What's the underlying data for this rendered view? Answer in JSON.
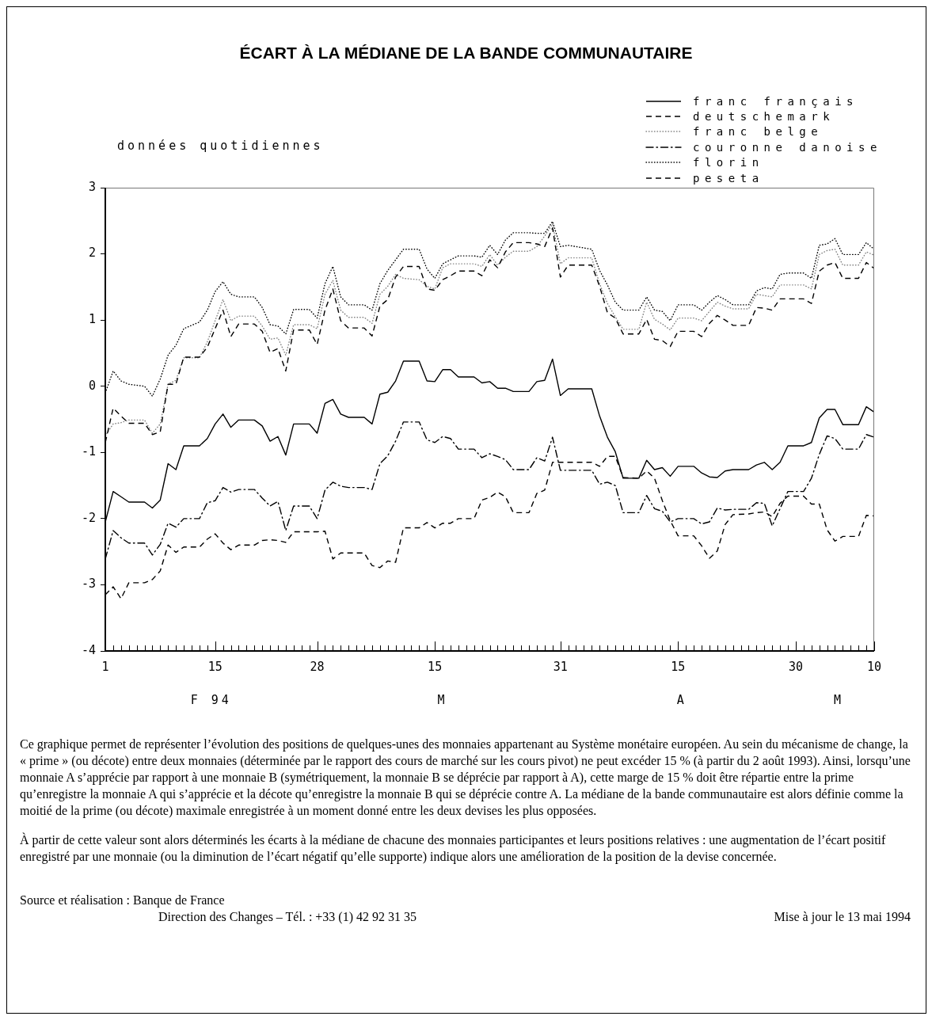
{
  "chart_data": {
    "type": "line",
    "title": "ÉCART À LA MÉDIANE DE LA BANDE COMMUNAUTAIRE",
    "ylabel": "données quotidiennes",
    "x": [
      "1994-02-01",
      "1994-02-02",
      "1994-02-03",
      "1994-02-04",
      "1994-02-06",
      "1994-02-07",
      "1994-02-08",
      "1994-02-09",
      "1994-02-10",
      "1994-02-11",
      "1994-02-13",
      "1994-02-14",
      "1994-02-15",
      "1994-02-16",
      "1994-02-17",
      "1994-02-18",
      "1994-02-20",
      "1994-02-21",
      "1994-02-22",
      "1994-02-23",
      "1994-02-24",
      "1994-02-25",
      "1994-02-27",
      "1994-02-28",
      "1994-03-01",
      "1994-03-02",
      "1994-03-03",
      "1994-03-04",
      "1994-03-06",
      "1994-03-07",
      "1994-03-08",
      "1994-03-09",
      "1994-03-10",
      "1994-03-11",
      "1994-03-13",
      "1994-03-14",
      "1994-03-15",
      "1994-03-16",
      "1994-03-17",
      "1994-03-18",
      "1994-03-20",
      "1994-03-21",
      "1994-03-22",
      "1994-03-23",
      "1994-03-24",
      "1994-03-25",
      "1994-03-27",
      "1994-03-28",
      "1994-03-29",
      "1994-03-30",
      "1994-03-31",
      "1994-04-01",
      "1994-04-04",
      "1994-04-05",
      "1994-04-06",
      "1994-04-07",
      "1994-04-08",
      "1994-04-10",
      "1994-04-11",
      "1994-04-12",
      "1994-04-13",
      "1994-04-14",
      "1994-04-15",
      "1994-04-17",
      "1994-04-18",
      "1994-04-19",
      "1994-04-20",
      "1994-04-21",
      "1994-04-22",
      "1994-04-24",
      "1994-04-25",
      "1994-04-26",
      "1994-04-27",
      "1994-04-28",
      "1994-04-29",
      "1994-05-01",
      "1994-05-02",
      "1994-05-03",
      "1994-05-04",
      "1994-05-05",
      "1994-05-06",
      "1994-05-08",
      "1994-05-09",
      "1994-05-10"
    ],
    "xlim": [
      "1994-02-01",
      "1994-05-10"
    ],
    "ylim": [
      -4,
      3
    ],
    "yticks": [
      -4,
      -3,
      -2,
      -1,
      0,
      1,
      2,
      3
    ],
    "xticks": [
      {
        "value": "1994-02-01",
        "label": "1"
      },
      {
        "value": "1994-02-02",
        "label": null
      },
      {
        "value": "1994-02-03",
        "label": null
      },
      {
        "value": "1994-02-04",
        "label": null
      },
      {
        "value": "1994-02-05",
        "label": null
      },
      {
        "value": "1994-02-06",
        "label": null
      },
      {
        "value": "1994-02-07",
        "label": null
      },
      {
        "value": "1994-02-08",
        "label": null
      },
      {
        "value": "1994-02-09",
        "label": null
      },
      {
        "value": "1994-02-10",
        "label": null
      },
      {
        "value": "1994-02-11",
        "label": null
      },
      {
        "value": "1994-02-12",
        "label": null
      },
      {
        "value": "1994-02-13",
        "label": null
      },
      {
        "value": "1994-02-14",
        "label": null
      },
      {
        "value": "1994-02-15",
        "label": "15"
      },
      {
        "value": "1994-02-16",
        "label": null
      },
      {
        "value": "1994-02-17",
        "label": null
      },
      {
        "value": "1994-02-18",
        "label": null
      },
      {
        "value": "1994-02-19",
        "label": null
      },
      {
        "value": "1994-02-20",
        "label": null
      },
      {
        "value": "1994-02-21",
        "label": null
      },
      {
        "value": "1994-02-22",
        "label": null
      },
      {
        "value": "1994-02-23",
        "label": null
      },
      {
        "value": "1994-02-24",
        "label": null
      },
      {
        "value": "1994-02-25",
        "label": null
      },
      {
        "value": "1994-02-26",
        "label": null
      },
      {
        "value": "1994-02-27",
        "label": null
      },
      {
        "value": "1994-02-28",
        "label": "28"
      },
      {
        "value": "1994-03-01",
        "label": null
      },
      {
        "value": "1994-03-02",
        "label": null
      },
      {
        "value": "1994-03-03",
        "label": null
      },
      {
        "value": "1994-03-04",
        "label": null
      },
      {
        "value": "1994-03-05",
        "label": null
      },
      {
        "value": "1994-03-06",
        "label": null
      },
      {
        "value": "1994-03-07",
        "label": null
      },
      {
        "value": "1994-03-08",
        "label": null
      },
      {
        "value": "1994-03-09",
        "label": null
      },
      {
        "value": "1994-03-10",
        "label": null
      },
      {
        "value": "1994-03-11",
        "label": null
      },
      {
        "value": "1994-03-12",
        "label": null
      },
      {
        "value": "1994-03-13",
        "label": null
      },
      {
        "value": "1994-03-14",
        "label": null
      },
      {
        "value": "1994-03-15",
        "label": "15"
      },
      {
        "value": "1994-03-16",
        "label": null
      },
      {
        "value": "1994-03-17",
        "label": null
      },
      {
        "value": "1994-03-18",
        "label": null
      },
      {
        "value": "1994-03-19",
        "label": null
      },
      {
        "value": "1994-03-20",
        "label": null
      },
      {
        "value": "1994-03-21",
        "label": null
      },
      {
        "value": "1994-03-22",
        "label": null
      },
      {
        "value": "1994-03-23",
        "label": null
      },
      {
        "value": "1994-03-24",
        "label": null
      },
      {
        "value": "1994-03-25",
        "label": null
      },
      {
        "value": "1994-03-26",
        "label": null
      },
      {
        "value": "1994-03-27",
        "label": null
      },
      {
        "value": "1994-03-28",
        "label": null
      },
      {
        "value": "1994-03-29",
        "label": null
      },
      {
        "value": "1994-03-30",
        "label": null
      },
      {
        "value": "1994-03-31",
        "label": "31"
      },
      {
        "value": "1994-04-01",
        "label": null
      },
      {
        "value": "1994-04-02",
        "label": null
      },
      {
        "value": "1994-04-03",
        "label": null
      },
      {
        "value": "1994-04-04",
        "label": null
      },
      {
        "value": "1994-04-05",
        "label": null
      },
      {
        "value": "1994-04-06",
        "label": null
      },
      {
        "value": "1994-04-07",
        "label": null
      },
      {
        "value": "1994-04-08",
        "label": null
      },
      {
        "value": "1994-04-09",
        "label": null
      },
      {
        "value": "1994-04-10",
        "label": null
      },
      {
        "value": "1994-04-11",
        "label": null
      },
      {
        "value": "1994-04-12",
        "label": null
      },
      {
        "value": "1994-04-13",
        "label": null
      },
      {
        "value": "1994-04-14",
        "label": null
      },
      {
        "value": "1994-04-15",
        "label": "15"
      },
      {
        "value": "1994-04-16",
        "label": null
      },
      {
        "value": "1994-04-17",
        "label": null
      },
      {
        "value": "1994-04-18",
        "label": null
      },
      {
        "value": "1994-04-19",
        "label": null
      },
      {
        "value": "1994-04-20",
        "label": null
      },
      {
        "value": "1994-04-21",
        "label": null
      },
      {
        "value": "1994-04-22",
        "label": null
      },
      {
        "value": "1994-04-23",
        "label": null
      },
      {
        "value": "1994-04-24",
        "label": null
      },
      {
        "value": "1994-04-25",
        "label": null
      },
      {
        "value": "1994-04-26",
        "label": null
      },
      {
        "value": "1994-04-27",
        "label": null
      },
      {
        "value": "1994-04-28",
        "label": null
      },
      {
        "value": "1994-04-29",
        "label": null
      },
      {
        "value": "1994-04-30",
        "label": "30"
      },
      {
        "value": "1994-05-01",
        "label": null
      },
      {
        "value": "1994-05-02",
        "label": null
      },
      {
        "value": "1994-05-03",
        "label": null
      },
      {
        "value": "1994-05-04",
        "label": null
      },
      {
        "value": "1994-05-05",
        "label": null
      },
      {
        "value": "1994-05-06",
        "label": null
      },
      {
        "value": "1994-05-07",
        "label": null
      },
      {
        "value": "1994-05-08",
        "label": null
      },
      {
        "value": "1994-05-09",
        "label": null
      },
      {
        "value": "1994-05-10",
        "label": "10"
      }
    ],
    "series": [
      {
        "name": "franc français",
        "color": "#000000",
        "line_style": "solid",
        "values": [
          -2.05,
          -1.59,
          -1.67,
          -1.75,
          -1.75,
          -1.84,
          -1.72,
          -1.17,
          -1.26,
          -0.9,
          -0.9,
          -0.79,
          -0.57,
          -0.42,
          -0.62,
          -0.51,
          -0.51,
          -0.6,
          -0.83,
          -0.76,
          -1.04,
          -0.57,
          -0.57,
          -0.71,
          -0.26,
          -0.2,
          -0.42,
          -0.47,
          -0.47,
          -0.57,
          -0.12,
          -0.09,
          0.08,
          0.38,
          0.38,
          0.08,
          0.07,
          0.25,
          0.25,
          0.14,
          0.14,
          0.05,
          0.07,
          -0.03,
          -0.03,
          -0.08,
          -0.08,
          0.07,
          0.09,
          0.41,
          -0.14,
          -0.04,
          -0.04,
          -0.45,
          -0.77,
          -0.99,
          -1.39,
          -1.39,
          -1.12,
          -1.26,
          -1.23,
          -1.36,
          -1.21,
          -1.21,
          -1.31,
          -1.37,
          -1.38,
          -1.28,
          -1.26,
          -1.26,
          -1.19,
          -1.15,
          -1.26,
          -1.15,
          -0.9,
          -0.9,
          -0.85,
          -0.48,
          -0.35,
          -0.35,
          -0.58,
          -0.58,
          -0.31,
          -0.39
        ]
      },
      {
        "name": "deutschemark",
        "color": "#000000",
        "line_style": "dashed",
        "values": [
          -0.85,
          -0.33,
          -0.45,
          -0.56,
          -0.56,
          -0.73,
          -0.69,
          0.03,
          0.03,
          0.44,
          0.44,
          0.59,
          0.87,
          1.15,
          0.75,
          0.94,
          0.94,
          0.83,
          0.51,
          0.57,
          0.23,
          0.85,
          0.85,
          0.63,
          1.15,
          1.47,
          0.99,
          0.88,
          0.88,
          0.76,
          1.21,
          1.31,
          1.65,
          1.81,
          1.81,
          1.47,
          1.45,
          1.61,
          1.67,
          1.74,
          1.74,
          1.67,
          1.91,
          1.79,
          2.03,
          2.17,
          2.17,
          2.15,
          2.11,
          2.39,
          1.65,
          1.83,
          1.83,
          1.51,
          1.11,
          1.03,
          0.79,
          0.79,
          1.01,
          0.71,
          0.69,
          0.6,
          0.83,
          0.83,
          0.75,
          0.95,
          1.07,
          1.0,
          0.92,
          0.92,
          1.19,
          1.18,
          1.15,
          1.32,
          1.32,
          1.32,
          1.25,
          1.74,
          1.83,
          1.87,
          1.63,
          1.63,
          1.87,
          1.78
        ]
      },
      {
        "name": "franc belge",
        "color": "#808080",
        "line_style": "dotted",
        "values": [
          -0.75,
          -0.57,
          -0.55,
          -0.51,
          -0.51,
          -0.71,
          -0.57,
          0.03,
          0.09,
          0.43,
          0.43,
          0.67,
          0.99,
          1.31,
          0.99,
          1.06,
          1.06,
          0.91,
          0.71,
          0.73,
          0.47,
          0.93,
          0.93,
          0.87,
          1.39,
          1.6,
          1.15,
          1.04,
          1.04,
          0.95,
          1.39,
          1.51,
          1.69,
          1.63,
          1.61,
          1.51,
          1.47,
          1.79,
          1.85,
          1.85,
          1.85,
          1.81,
          1.99,
          1.83,
          1.95,
          2.04,
          2.04,
          2.11,
          2.27,
          2.45,
          1.85,
          1.94,
          1.94,
          1.55,
          1.25,
          1.05,
          0.86,
          0.86,
          1.27,
          1.01,
          0.94,
          0.85,
          1.03,
          1.03,
          0.99,
          1.13,
          1.27,
          1.21,
          1.17,
          1.17,
          1.39,
          1.37,
          1.35,
          1.53,
          1.53,
          1.53,
          1.47,
          1.99,
          2.05,
          2.07,
          1.83,
          1.83,
          2.03,
          1.98
        ]
      },
      {
        "name": "couronne danoise",
        "color": "#000000",
        "line_style": "dashdot",
        "values": [
          -2.61,
          -2.18,
          -2.29,
          -2.37,
          -2.37,
          -2.55,
          -2.39,
          -2.07,
          -2.13,
          -2.0,
          -2.0,
          -1.76,
          -1.73,
          -1.53,
          -1.6,
          -1.56,
          -1.56,
          -1.69,
          -1.81,
          -1.74,
          -2.18,
          -1.81,
          -1.81,
          -2.0,
          -1.57,
          -1.45,
          -1.51,
          -1.53,
          -1.53,
          -1.56,
          -1.17,
          -1.05,
          -0.83,
          -0.54,
          -0.54,
          -0.81,
          -0.85,
          -0.76,
          -0.79,
          -0.95,
          -0.95,
          -1.08,
          -1.02,
          -1.06,
          -1.11,
          -1.26,
          -1.26,
          -1.08,
          -1.13,
          -0.77,
          -1.27,
          -1.27,
          -1.27,
          -1.48,
          -1.45,
          -1.5,
          -1.91,
          -1.91,
          -1.65,
          -1.85,
          -1.89,
          -2.05,
          -2.0,
          -2.0,
          -2.08,
          -2.05,
          -1.84,
          -1.87,
          -1.86,
          -1.86,
          -1.76,
          -1.77,
          -2.11,
          -1.85,
          -1.59,
          -1.59,
          -1.39,
          -1.03,
          -0.75,
          -0.79,
          -0.95,
          -0.95,
          -0.73,
          -0.77
        ]
      },
      {
        "name": "florin",
        "color": "#000000",
        "line_style": "dotted",
        "values": [
          -0.1,
          0.23,
          0.08,
          0.03,
          0.0,
          -0.15,
          0.11,
          0.47,
          0.62,
          0.87,
          0.97,
          1.15,
          1.43,
          1.58,
          1.39,
          1.35,
          1.35,
          1.19,
          0.93,
          0.91,
          0.79,
          1.16,
          1.16,
          1.03,
          1.55,
          1.81,
          1.35,
          1.23,
          1.23,
          1.15,
          1.55,
          1.75,
          1.91,
          2.07,
          2.07,
          1.77,
          1.63,
          1.85,
          1.91,
          1.97,
          1.97,
          1.95,
          2.13,
          1.99,
          2.21,
          2.32,
          2.32,
          2.31,
          2.31,
          2.49,
          2.11,
          2.13,
          2.07,
          1.75,
          1.53,
          1.27,
          1.15,
          1.15,
          1.35,
          1.15,
          1.13,
          0.99,
          1.23,
          1.23,
          1.15,
          1.27,
          1.37,
          1.31,
          1.23,
          1.23,
          1.44,
          1.49,
          1.47,
          1.69,
          1.71,
          1.71,
          1.63,
          2.13,
          2.15,
          2.23,
          1.99,
          1.99,
          2.17,
          2.07
        ]
      },
      {
        "name": "peseta",
        "color": "#000000",
        "line_style": "dashed",
        "values": [
          -3.15,
          -3.03,
          -3.21,
          -2.97,
          -2.97,
          -2.92,
          -2.79,
          -2.4,
          -2.51,
          -2.43,
          -2.43,
          -2.31,
          -2.23,
          -2.37,
          -2.47,
          -2.4,
          -2.4,
          -2.33,
          -2.32,
          -2.33,
          -2.36,
          -2.2,
          -2.2,
          -2.2,
          -2.19,
          -2.61,
          -2.52,
          -2.52,
          -2.52,
          -2.71,
          -2.74,
          -2.64,
          -2.66,
          -2.14,
          -2.14,
          -2.06,
          -2.14,
          -2.07,
          -2.07,
          -2.0,
          -2.0,
          -1.72,
          -1.68,
          -1.6,
          -1.67,
          -1.91,
          -1.91,
          -1.62,
          -1.57,
          -1.15,
          -1.15,
          -1.15,
          -1.15,
          -1.21,
          -1.06,
          -1.06,
          -1.38,
          -1.39,
          -1.28,
          -1.39,
          -1.73,
          -2.03,
          -2.26,
          -2.26,
          -2.41,
          -2.6,
          -2.49,
          -2.09,
          -1.94,
          -1.93,
          -1.91,
          -1.9,
          -1.97,
          -1.77,
          -1.66,
          -1.66,
          -1.78,
          -1.78,
          -2.17,
          -2.34,
          -2.27,
          -2.27,
          -1.95,
          -1.96
        ]
      }
    ],
    "legend": "top right",
    "grid": false,
    "marker": "none",
    "annotations": [
      "F 94",
      "M",
      "A",
      "M",
      "Ce graphique permet de représenter l’évolution des positions de quelques-unes des monnaies appartenant au Système monétaire européen. Au sein du mécanisme de change, la « prime » (ou décote) entre deux monnaies (déterminée par le rapport des cours de marché sur les cours pivot) ne peut excéder 15 % (à partir du 2 août 1993). Ainsi, lorsqu’une monnaie A s’apprécie par rapport à une monnaie B (symétriquement, la monnaie B se déprécie par rapport à A), cette marge de 15 % doit être répartie entre la prime qu’enregistre la monnaie A qui s’apprécie et la décote qu’enregistre la monnaie B qui se déprécie contre A. La médiane de la bande communautaire est alors définie comme la moitié de la prime (ou décote) maximale enregistrée à un moment donné entre les deux devises les plus opposées.",
      "À partir de cette valeur sont alors déterminés les écarts à la médiane de chacune des monnaies participantes et leurs positions relatives : une augmentation de l’écart positif enregistré par une monnaie (ou la diminution de l’écart négatif qu’elle supporte) indique alors une amélioration de la position de la devise concernée.",
      "Source et réalisation : Banque de France",
      "Direction des Changes – Tél. : +33 (1) 42 92 31 35",
      "Mise à jour le 13 mai 1994"
    ]
  }
}
